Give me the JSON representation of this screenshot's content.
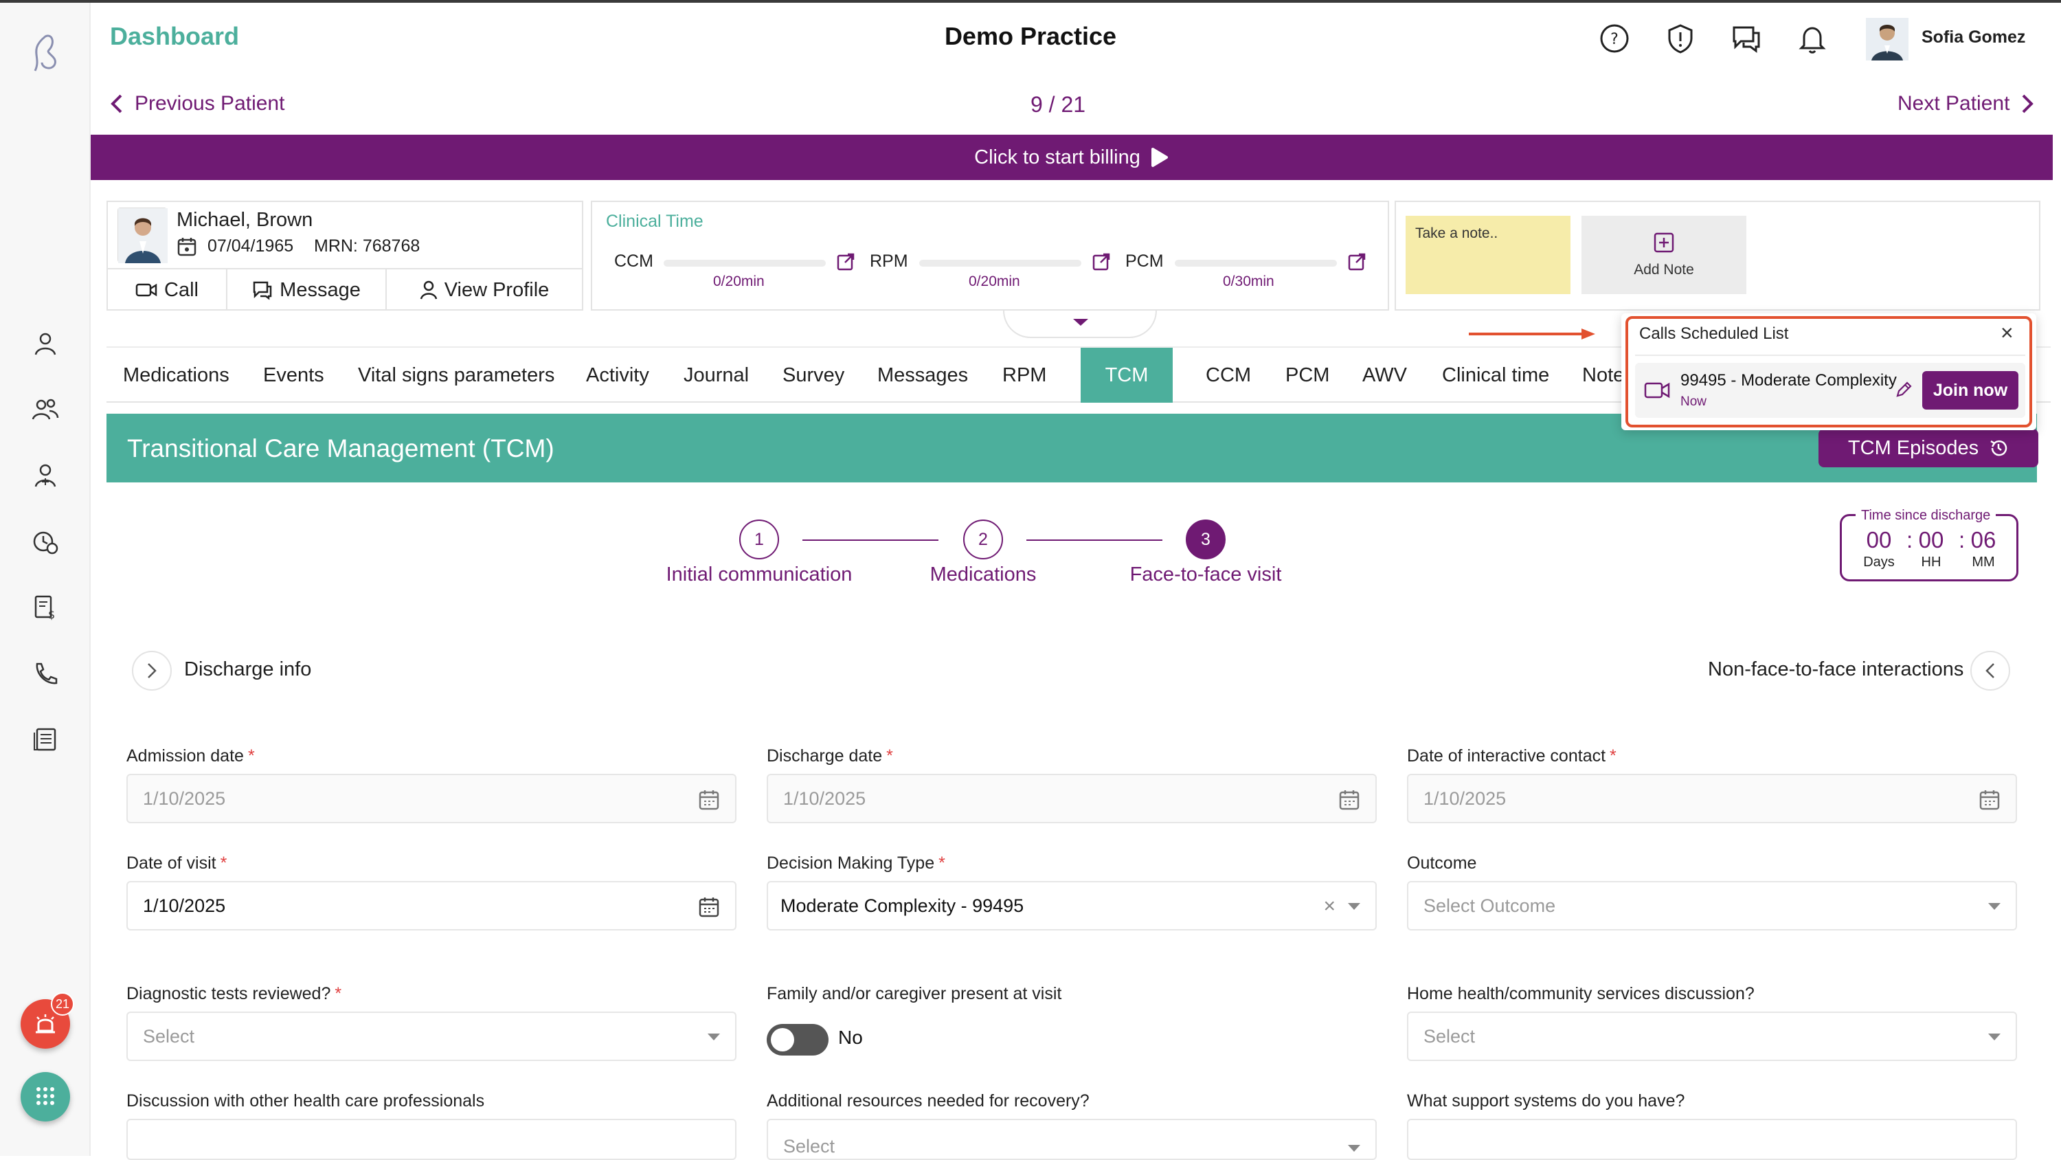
{
  "header": {
    "app_title": "Dashboard",
    "practice_name": "Demo Practice",
    "user_name": "Sofia Gomez",
    "icons": [
      "help-icon",
      "alert-icon",
      "chat-icon",
      "bell-icon"
    ]
  },
  "navigation": {
    "previous_label": "Previous Patient",
    "counter": "9 / 21",
    "next_label": "Next Patient"
  },
  "billing": {
    "label": "Click to start billing"
  },
  "patient": {
    "name": "Michael, Brown",
    "dob": "07/04/1965",
    "mrn": "MRN: 768768",
    "actions": [
      "Call",
      "Message",
      "View Profile"
    ]
  },
  "clinical_time": {
    "title": "Clinical Time",
    "items": [
      {
        "label": "CCM",
        "value": "0/20min",
        "progress": 0
      },
      {
        "label": "RPM",
        "value": "0/20min",
        "progress": 0
      },
      {
        "label": "PCM",
        "value": "0/30min",
        "progress": 0
      }
    ]
  },
  "notes": {
    "placeholder": "Take a note..",
    "add_label": "Add Note"
  },
  "tabs": [
    "Medications",
    "Events",
    "Vital signs parameters",
    "Activity",
    "Journal",
    "Survey",
    "Messages",
    "RPM",
    "TCM",
    "CCM",
    "PCM",
    "AWV",
    "Clinical time",
    "Note"
  ],
  "active_tab": "TCM",
  "tcm": {
    "title": "Transitional Care Management (TCM)",
    "episodes_label": "TCM Episodes",
    "steps": [
      {
        "number": "1",
        "label": "Initial communication"
      },
      {
        "number": "2",
        "label": "Medications"
      },
      {
        "number": "3",
        "label": "Face-to-face visit"
      }
    ],
    "active_step": 3,
    "time_since_discharge": {
      "title": "Time since discharge",
      "days": "00",
      "hours": "00",
      "minutes": "06",
      "days_label": "Days",
      "hours_label": "HH",
      "minutes_label": "MM"
    },
    "discharge_info_label": "Discharge info",
    "non_f2f_label": "Non-face-to-face interactions"
  },
  "form": {
    "admission_date": {
      "label": "Admission date",
      "value": "1/10/2025"
    },
    "discharge_date": {
      "label": "Discharge date",
      "value": "1/10/2025"
    },
    "interactive_contact": {
      "label": "Date of interactive contact",
      "value": "1/10/2025"
    },
    "date_of_visit": {
      "label": "Date of visit",
      "value": "1/10/2025"
    },
    "decision_making": {
      "label": "Decision Making Type",
      "value": "Moderate Complexity - 99495"
    },
    "outcome": {
      "label": "Outcome",
      "placeholder": "Select Outcome"
    },
    "diagnostic_tests": {
      "label": "Diagnostic tests reviewed?",
      "placeholder": "Select"
    },
    "family_present": {
      "label": "Family and/or caregiver present at visit",
      "value": "No"
    },
    "home_health": {
      "label": "Home health/community services discussion?",
      "placeholder": "Select"
    },
    "discussion_professionals": {
      "label": "Discussion with other health care professionals"
    },
    "additional_resources": {
      "label": "Additional resources needed for recovery?",
      "placeholder": "Select"
    },
    "support_systems": {
      "label": "What support systems do you have?"
    }
  },
  "floating": {
    "alarm_count": "21"
  },
  "calls_popup": {
    "title": "Calls Scheduled List",
    "item_title": "99495 - Moderate Complexity",
    "item_time": "Now",
    "join_label": "Join now"
  },
  "colors": {
    "brand_purple": "#6f1a73",
    "brand_teal": "#4caf9c",
    "highlight_red": "#e2512f",
    "alert_red": "#e84a3c"
  }
}
